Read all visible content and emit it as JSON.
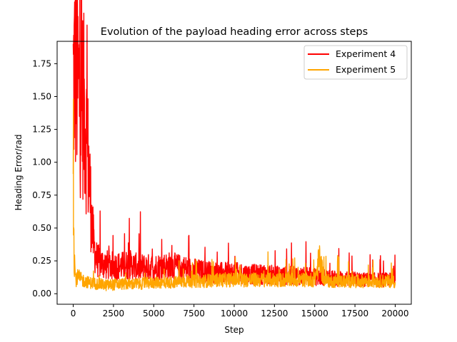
{
  "chart_data": {
    "type": "line",
    "title": "Evolution of the payload heading error across steps",
    "xlabel": "Step",
    "ylabel": "Heading Error/rad",
    "xlim": [
      -1000,
      21000
    ],
    "ylim": [
      -0.08,
      1.92
    ],
    "xticks": [
      0,
      2500,
      5000,
      7500,
      10000,
      12500,
      15000,
      17500,
      20000
    ],
    "xtick_labels": [
      "0",
      "2500",
      "5000",
      "7500",
      "10000",
      "12500",
      "15000",
      "17500",
      "20000"
    ],
    "yticks": [
      0.0,
      0.25,
      0.5,
      0.75,
      1.0,
      1.25,
      1.5,
      1.75
    ],
    "ytick_labels": [
      "0.00",
      "0.25",
      "0.50",
      "0.75",
      "1.00",
      "1.25",
      "1.50",
      "1.75"
    ],
    "grid": false,
    "legend_position": "top-right",
    "series": [
      {
        "name": "Experiment 4",
        "color": "#ff0000",
        "x": [
          0,
          100,
          200,
          300,
          400,
          500,
          600,
          700,
          800,
          900,
          1000,
          1100,
          1200,
          1300,
          1400,
          1500,
          1750,
          2000,
          2500,
          3000,
          3500,
          4000,
          5000,
          6000,
          7000,
          8000,
          9000,
          10000,
          11000,
          12000,
          13000,
          14000,
          15000,
          15500,
          16000,
          17000,
          18000,
          19000,
          19500,
          20000
        ],
        "y": [
          1.55,
          1.62,
          1.58,
          1.5,
          1.45,
          1.4,
          1.38,
          1.3,
          1.18,
          1.0,
          0.85,
          0.62,
          0.45,
          0.33,
          0.27,
          0.24,
          0.22,
          0.21,
          0.2,
          0.2,
          0.21,
          0.19,
          0.19,
          0.2,
          0.18,
          0.16,
          0.15,
          0.15,
          0.14,
          0.14,
          0.13,
          0.13,
          0.12,
          0.12,
          0.11,
          0.11,
          0.1,
          0.1,
          0.1,
          0.1
        ],
        "peak": {
          "x": 0,
          "y": 1.82
        }
      },
      {
        "name": "Experiment 5",
        "color": "#ffa500",
        "x": [
          0,
          50,
          150,
          300,
          500,
          1000,
          2000,
          3000,
          4000,
          5000,
          6000,
          7000,
          8000,
          9000,
          10000,
          11000,
          12000,
          13000,
          14000,
          15000,
          15300,
          15600,
          16000,
          17000,
          18000,
          19000,
          20000
        ],
        "y": [
          1.1,
          0.3,
          0.1,
          0.12,
          0.1,
          0.08,
          0.06,
          0.07,
          0.07,
          0.08,
          0.08,
          0.09,
          0.09,
          0.1,
          0.1,
          0.1,
          0.1,
          0.1,
          0.1,
          0.1,
          0.25,
          0.1,
          0.09,
          0.09,
          0.09,
          0.09,
          0.09
        ],
        "peak": {
          "x": 0,
          "y": 1.48
        }
      }
    ]
  }
}
